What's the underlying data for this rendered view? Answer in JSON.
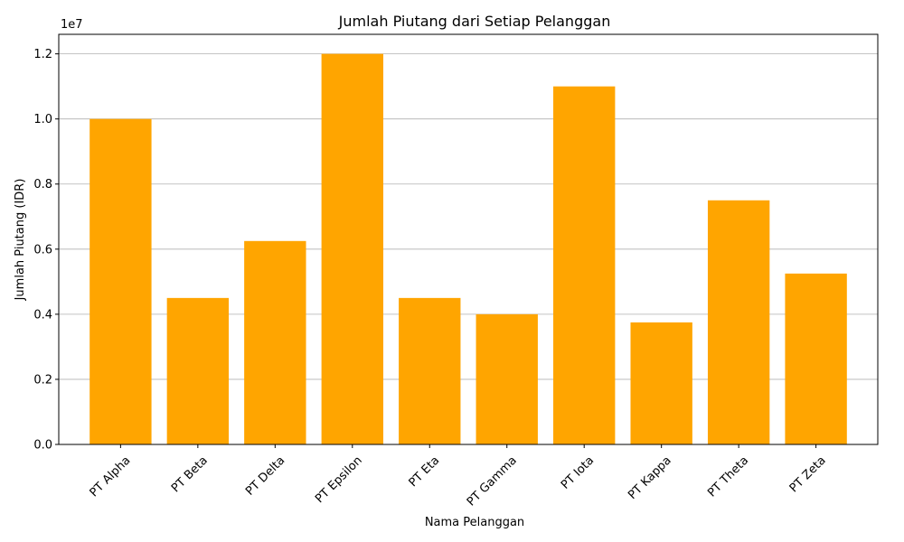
{
  "chart_data": {
    "type": "bar",
    "title": "Jumlah Piutang dari Setiap Pelanggan",
    "xlabel": "Nama Pelanggan",
    "ylabel": "Jumlah Piutang (IDR)",
    "y_offset_text": "1e7",
    "categories": [
      "PT Alpha",
      "PT Beta",
      "PT Delta",
      "PT Epsilon",
      "PT Eta",
      "PT Gamma",
      "PT Iota",
      "PT Kappa",
      "PT Theta",
      "PT Zeta"
    ],
    "values": [
      10000000,
      4500000,
      6250000,
      12000000,
      4500000,
      4000000,
      11000000,
      3750000,
      7500000,
      5250000
    ],
    "ylim": [
      0,
      12600000
    ],
    "yticks": [
      0,
      2000000,
      4000000,
      6000000,
      8000000,
      10000000,
      12000000
    ],
    "ytick_labels": [
      "0.0",
      "0.2",
      "0.4",
      "0.6",
      "0.8",
      "1.0",
      "1.2"
    ],
    "bar_color": "#ffa500",
    "grid": "y",
    "xtick_rotation": 45
  }
}
